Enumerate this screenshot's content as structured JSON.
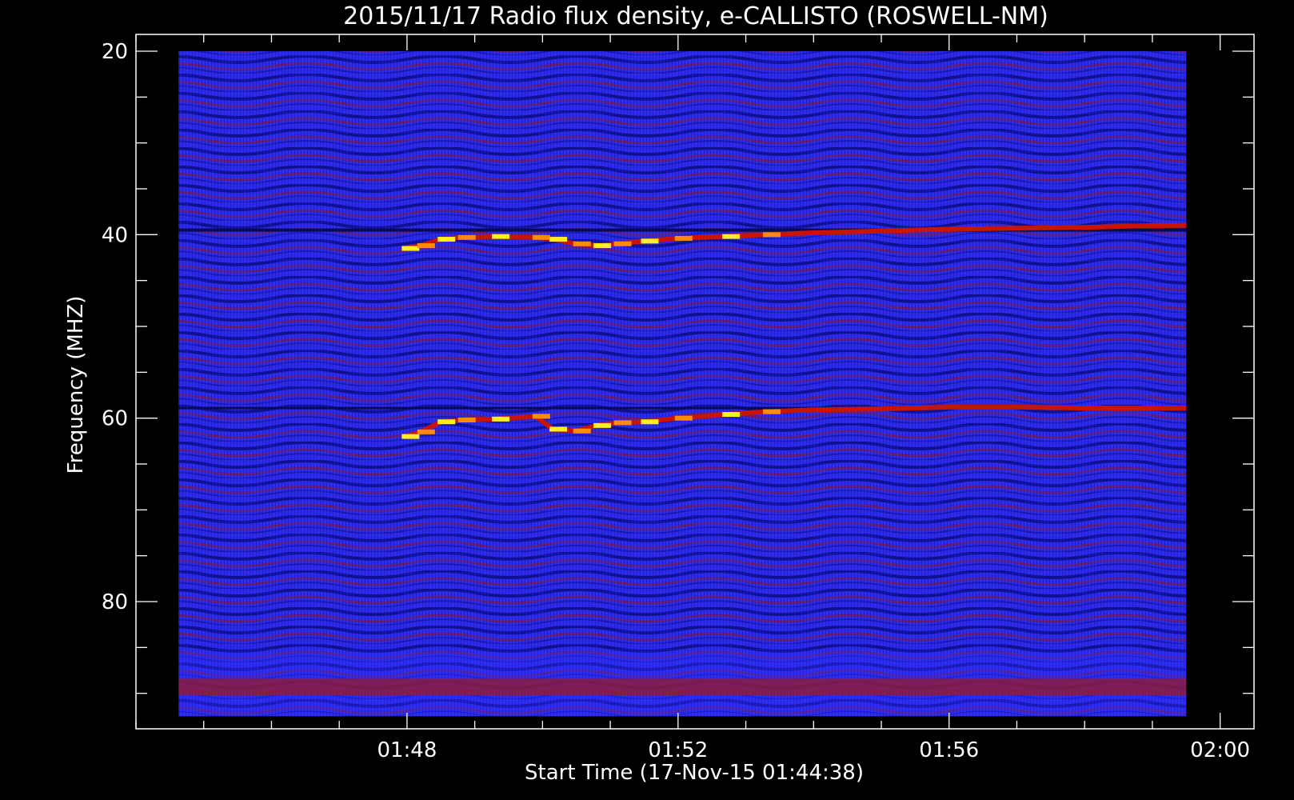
{
  "chart_data": {
    "type": "heatmap",
    "title": "2015/11/17  Radio flux density, e-CALLISTO (ROSWELL-NM)",
    "xlabel": "Start Time (17-Nov-15 01:44:38)",
    "ylabel": "Frequency (MHZ)",
    "x_unit": "minutes",
    "xlim": [
      104.0,
      120.5
    ],
    "ylim": [
      20,
      92.5
    ],
    "y_inverted": true,
    "data_x_range": [
      104.63,
      119.5
    ],
    "data_y_range": [
      20,
      92.5
    ],
    "x_ticks": [
      {
        "value": 108,
        "label": "01:48"
      },
      {
        "value": 112,
        "label": "01:52"
      },
      {
        "value": 116,
        "label": "01:56"
      },
      {
        "value": 120,
        "label": "02:00"
      }
    ],
    "x_minor_step": 1,
    "y_ticks": [
      {
        "value": 20,
        "label": "20"
      },
      {
        "value": 40,
        "label": "40"
      },
      {
        "value": 60,
        "label": "60"
      },
      {
        "value": 80,
        "label": "80"
      }
    ],
    "y_minor_step": 5,
    "colors": {
      "background": "#000000",
      "axes": "#ffffff",
      "field": "#2a2af0",
      "field_dark": "#10108a",
      "field_red": "#8a1a3c",
      "burst_low": "#c81400",
      "burst_high": "#ffee22"
    },
    "series": [
      {
        "points": [
          [
            107.97,
            41.5
          ],
          [
            108.2,
            41.2
          ],
          [
            108.5,
            40.5
          ],
          [
            108.8,
            40.3
          ],
          [
            109.3,
            40.2
          ],
          [
            109.9,
            40.3
          ],
          [
            110.15,
            40.5
          ],
          [
            110.5,
            41.0
          ],
          [
            110.8,
            41.2
          ],
          [
            111.1,
            41.0
          ],
          [
            111.5,
            40.7
          ],
          [
            112.0,
            40.4
          ],
          [
            112.7,
            40.2
          ],
          [
            113.3,
            40.0
          ],
          [
            114.0,
            39.8
          ],
          [
            115.0,
            39.6
          ],
          [
            116.0,
            39.4
          ],
          [
            117.0,
            39.3
          ],
          [
            118.0,
            39.2
          ],
          [
            119.0,
            39.0
          ],
          [
            119.5,
            39.0
          ]
        ]
      },
      {
        "points": [
          [
            107.97,
            62.0
          ],
          [
            108.2,
            61.5
          ],
          [
            108.5,
            60.4
          ],
          [
            108.8,
            60.2
          ],
          [
            109.3,
            60.1
          ],
          [
            109.9,
            59.8
          ],
          [
            110.15,
            61.2
          ],
          [
            110.5,
            61.4
          ],
          [
            110.8,
            60.8
          ],
          [
            111.1,
            60.5
          ],
          [
            111.5,
            60.4
          ],
          [
            112.0,
            60.0
          ],
          [
            112.7,
            59.6
          ],
          [
            113.3,
            59.3
          ],
          [
            114.0,
            59.1
          ],
          [
            115.0,
            59.0
          ],
          [
            116.0,
            58.8
          ],
          [
            117.0,
            58.8
          ],
          [
            118.0,
            58.9
          ],
          [
            119.0,
            58.9
          ],
          [
            119.5,
            58.9
          ]
        ]
      }
    ]
  }
}
